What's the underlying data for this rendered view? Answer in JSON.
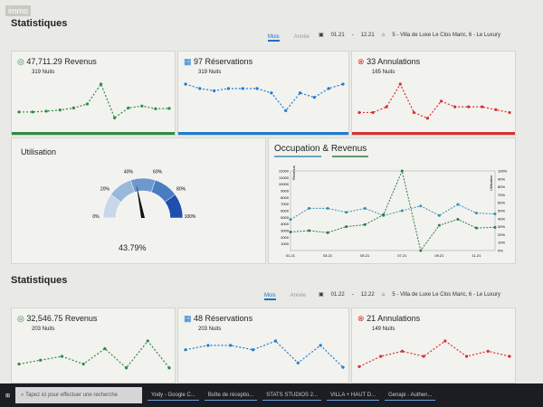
{
  "logo": "immo",
  "section1": {
    "title": "Statistiques",
    "tabs": [
      "Mois",
      "Année"
    ],
    "from": "01.21",
    "to": "12.21",
    "property": "5 - Villa de Luxe Le Clos Maric, 6 - Le Luxury",
    "cards": [
      {
        "icon": "coins-icon",
        "title": "47,711.29 Revenus",
        "sub": "319 Nuits",
        "color": "#2e8b3e",
        "values": [
          3,
          3,
          3.2,
          3.5,
          4,
          5,
          10,
          1.5,
          4,
          4.5,
          3.8,
          3.9
        ]
      },
      {
        "icon": "calendar-icon",
        "title": "97 Réservations",
        "sub": "319 Nuits",
        "color": "#1e7bd0",
        "values": [
          9,
          8,
          7.5,
          8,
          8,
          8,
          7,
          3,
          7,
          6,
          8,
          9
        ]
      },
      {
        "icon": "cancel-icon",
        "title": "33 Annulations",
        "sub": "165 Nuits",
        "color": "#d83030",
        "values": [
          2,
          2,
          3,
          7,
          2,
          1,
          4,
          3,
          3,
          3,
          2.5,
          2
        ]
      }
    ],
    "gauge": {
      "title": "Utilisation",
      "value": 43.79,
      "label": "43.79%",
      "ticks": [
        "0%",
        "20%",
        "40%",
        "60%",
        "80%",
        "100%"
      ]
    },
    "chart_data": {
      "type": "line",
      "title": "Occupation & Revenus",
      "x": [
        "01.21",
        "02.21",
        "03.21",
        "04.21",
        "05.21",
        "06.21",
        "07.21",
        "08.21",
        "09.21",
        "10.21",
        "11.21",
        "12.21"
      ],
      "xticks": [
        "01.21",
        "03.21",
        "05.21",
        "07.21",
        "09.21",
        "11.21"
      ],
      "ylabel_left": "Revenus",
      "ylabel_right": "Utilisation",
      "ylim_left": [
        0,
        12000
      ],
      "ylim_right": [
        0,
        100
      ],
      "yticks_left": [
        "12000",
        "11000",
        "10000",
        "9000",
        "8000",
        "7000",
        "6000",
        "5000",
        "4000",
        "3000",
        "2000",
        "1000"
      ],
      "yticks_right": [
        "100%",
        "90%",
        "80%",
        "70%",
        "60%",
        "50%",
        "40%",
        "30%",
        "20%",
        "10%",
        "0%"
      ],
      "series": [
        {
          "axis": "right",
          "color": "#3a8fb0",
          "values": [
            39,
            53,
            53,
            48,
            53,
            44,
            50,
            56,
            44,
            58,
            47,
            46
          ]
        },
        {
          "axis": "left",
          "color": "#2e7a4a",
          "values": [
            2800,
            3000,
            2700,
            3600,
            3900,
            5400,
            12000,
            0,
            3800,
            4700,
            3400,
            3500
          ]
        }
      ]
    }
  },
  "section2": {
    "title": "Statistiques",
    "tabs": [
      "Mois",
      "Année"
    ],
    "from": "01.22",
    "to": "12.22",
    "property": "5 - Villa de Luxe Le Clos Maric, 6 - Le Luxury",
    "cards": [
      {
        "icon": "coins-icon",
        "title": "32,546.75 Revenus",
        "sub": "203 Nuits",
        "color": "#2e8b3e",
        "values": [
          2,
          3,
          4,
          2,
          6,
          1,
          8,
          1
        ]
      },
      {
        "icon": "calendar-icon",
        "title": "48 Réservations",
        "sub": "203 Nuits",
        "color": "#1e7bd0",
        "values": [
          5,
          6,
          6,
          5,
          7,
          2,
          6,
          1
        ]
      },
      {
        "icon": "cancel-icon",
        "title": "21 Annulations",
        "sub": "149 Nuits",
        "color": "#d83030",
        "values": [
          1,
          3,
          4,
          3,
          6,
          3,
          4,
          3
        ]
      }
    ]
  },
  "taskbar": {
    "search": "Tapez ici pour effectuer une recherche",
    "apps": [
      "Yody - Google C...",
      "Boîte de réceptio...",
      "STATS STUDIOS 2...",
      "VILLA + HAUT D...",
      "Genapi - Authen..."
    ]
  }
}
